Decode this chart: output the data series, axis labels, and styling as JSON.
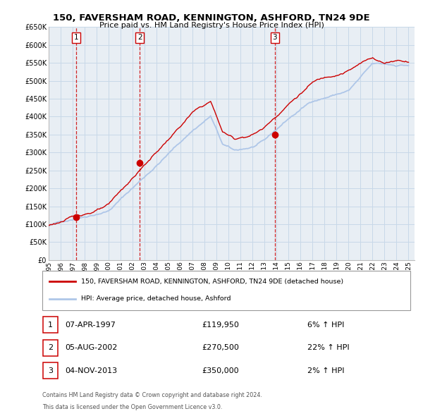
{
  "title": "150, FAVERSHAM ROAD, KENNINGTON, ASHFORD, TN24 9DE",
  "subtitle": "Price paid vs. HM Land Registry's House Price Index (HPI)",
  "legend_line1": "150, FAVERSHAM ROAD, KENNINGTON, ASHFORD, TN24 9DE (detached house)",
  "legend_line2": "HPI: Average price, detached house, Ashford",
  "footer1": "Contains HM Land Registry data © Crown copyright and database right 2024.",
  "footer2": "This data is licensed under the Open Government Licence v3.0.",
  "transactions": [
    {
      "num": 1,
      "date": "07-APR-1997",
      "price": 119950,
      "year": 1997.27,
      "hpi_pct": "6% ↑ HPI"
    },
    {
      "num": 2,
      "date": "05-AUG-2002",
      "price": 270500,
      "year": 2002.59,
      "hpi_pct": "22% ↑ HPI"
    },
    {
      "num": 3,
      "date": "04-NOV-2013",
      "price": 350000,
      "year": 2013.84,
      "hpi_pct": "2% ↑ HPI"
    }
  ],
  "hpi_color": "#aec6e8",
  "price_color": "#cc0000",
  "marker_color": "#cc0000",
  "grid_color": "#c8d8e8",
  "plot_bg": "#e8eef4",
  "ylim": [
    0,
    650000
  ],
  "yticks": [
    0,
    50000,
    100000,
    150000,
    200000,
    250000,
    300000,
    350000,
    400000,
    450000,
    500000,
    550000,
    600000,
    650000
  ],
  "xlim_start": 1995.0,
  "xlim_end": 2025.5
}
